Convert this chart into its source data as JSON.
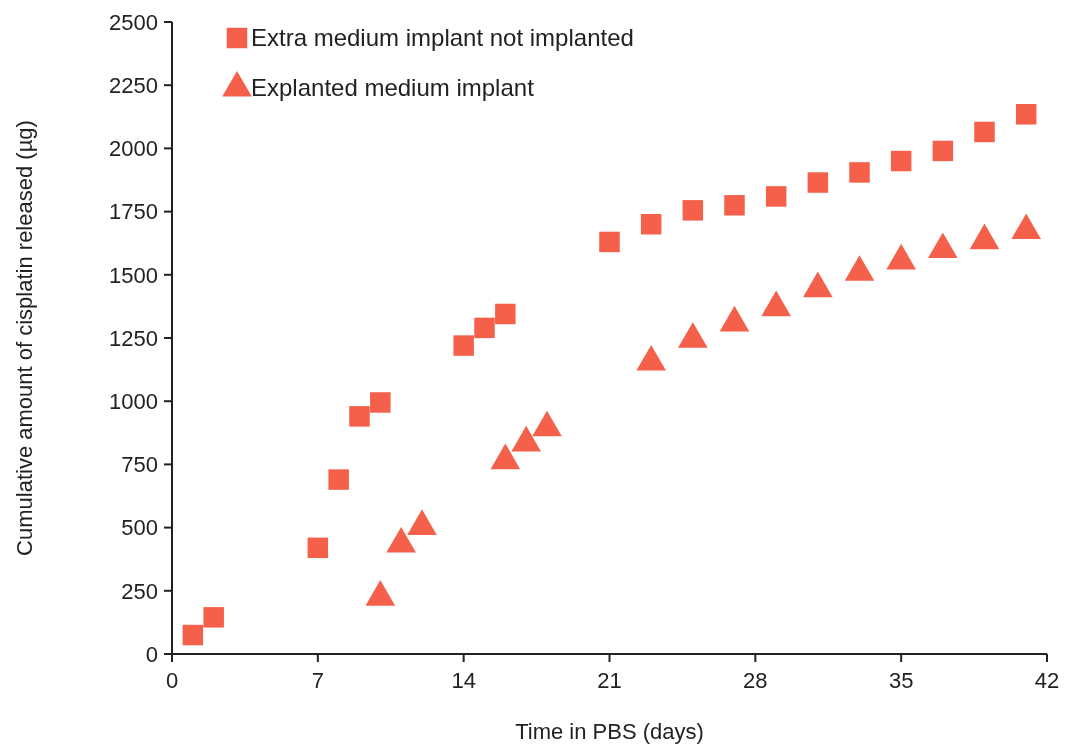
{
  "chart_data": {
    "type": "scatter",
    "xlabel": "Time in PBS (days)",
    "ylabel": "Cumulative amount of cisplatin released (µg)",
    "xlim": [
      0,
      42
    ],
    "xticks": [
      0,
      7,
      14,
      21,
      28,
      35,
      42
    ],
    "ylim": [
      0,
      2500
    ],
    "yticks": [
      0,
      250,
      500,
      750,
      1000,
      1250,
      1500,
      1750,
      2000,
      2250,
      2500
    ],
    "legend": "top left",
    "grid": false,
    "series": [
      {
        "name": "Extra medium implant not implanted",
        "color": "#f5604a",
        "marker": "square",
        "x": [
          1,
          2,
          7,
          8,
          9,
          10,
          14,
          15,
          16,
          21,
          23,
          25,
          27,
          29,
          31,
          33,
          35,
          37,
          39,
          41
        ],
        "values": [
          75,
          145,
          420,
          690,
          940,
          995,
          1220,
          1290,
          1345,
          1630,
          1700,
          1755,
          1775,
          1810,
          1865,
          1905,
          1950,
          1990,
          2065,
          2135
        ]
      },
      {
        "name": "Explanted medium implant",
        "color": "#f5604a",
        "marker": "triangle",
        "x": [
          10,
          11,
          12,
          16,
          17,
          18,
          23,
          25,
          27,
          29,
          31,
          33,
          35,
          37,
          39,
          41
        ],
        "values": [
          225,
          435,
          505,
          765,
          835,
          895,
          1155,
          1245,
          1310,
          1370,
          1445,
          1510,
          1555,
          1600,
          1635,
          1675
        ]
      }
    ]
  }
}
